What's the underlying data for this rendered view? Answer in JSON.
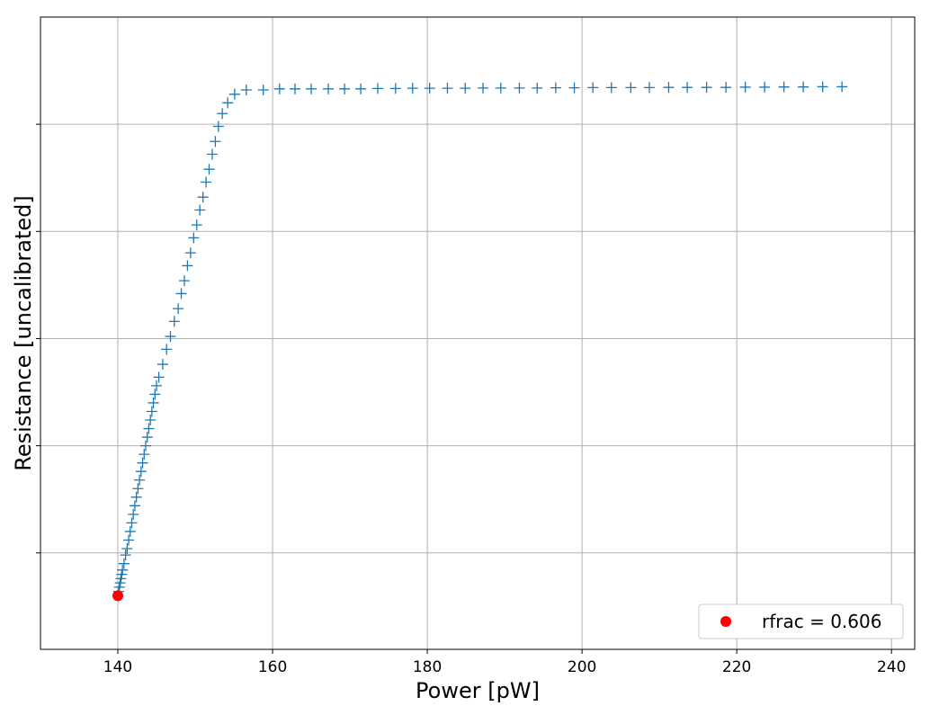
{
  "chart_data": {
    "type": "scatter",
    "xlabel": "Power [pW]",
    "ylabel": "Resistance [uncalibrated]",
    "xlim": [
      130,
      243
    ],
    "ylim": [
      -0.25,
      2.7
    ],
    "xticks": [
      140,
      160,
      180,
      200,
      220,
      240
    ],
    "yticks": [
      0.2,
      0.7,
      1.2,
      1.7,
      2.2
    ],
    "grid": true,
    "legend_position": "lower right",
    "colors": {
      "series": "#1f77b4",
      "highlight": "#ff0000",
      "grid": "#b0b0b0"
    },
    "series": [
      {
        "marker": "plus",
        "x": [
          140.0,
          140.1,
          140.2,
          140.3,
          140.4,
          140.5,
          140.6,
          140.8,
          141.0,
          141.2,
          141.4,
          141.6,
          141.8,
          142.0,
          142.2,
          142.4,
          142.6,
          142.8,
          143.0,
          143.2,
          143.4,
          143.6,
          143.8,
          144.0,
          144.2,
          144.4,
          144.6,
          144.8,
          145.0,
          145.3,
          145.8,
          146.3,
          146.8,
          147.3,
          147.8,
          148.2,
          148.6,
          149.0,
          149.4,
          149.8,
          150.2,
          150.6,
          151.0,
          151.4,
          151.8,
          152.2,
          152.6,
          153.0,
          153.5,
          154.2,
          155.1,
          156.6,
          158.8,
          160.9,
          162.9,
          165.0,
          167.2,
          169.3,
          171.4,
          173.6,
          175.9,
          178.1,
          180.3,
          182.6,
          184.9,
          187.2,
          189.5,
          191.9,
          194.2,
          196.6,
          199.0,
          201.4,
          203.8,
          206.3,
          208.7,
          211.2,
          213.6,
          216.1,
          218.6,
          221.1,
          223.6,
          226.1,
          228.6,
          231.1,
          233.6
        ],
        "y": [
          0.0,
          0.02,
          0.04,
          0.06,
          0.08,
          0.1,
          0.12,
          0.15,
          0.19,
          0.22,
          0.26,
          0.3,
          0.34,
          0.38,
          0.42,
          0.46,
          0.5,
          0.54,
          0.58,
          0.62,
          0.66,
          0.7,
          0.74,
          0.78,
          0.82,
          0.86,
          0.9,
          0.94,
          0.98,
          1.02,
          1.08,
          1.15,
          1.21,
          1.28,
          1.34,
          1.41,
          1.47,
          1.54,
          1.6,
          1.67,
          1.73,
          1.8,
          1.86,
          1.93,
          1.99,
          2.06,
          2.12,
          2.19,
          2.25,
          2.3,
          2.34,
          2.36,
          2.36,
          2.365,
          2.365,
          2.365,
          2.365,
          2.365,
          2.365,
          2.367,
          2.367,
          2.368,
          2.368,
          2.368,
          2.368,
          2.369,
          2.369,
          2.369,
          2.369,
          2.37,
          2.37,
          2.371,
          2.371,
          2.371,
          2.371,
          2.372,
          2.372,
          2.372,
          2.372,
          2.373,
          2.373,
          2.374,
          2.374,
          2.375,
          2.375
        ]
      },
      {
        "name": "rfrac = 0.606",
        "marker": "circle",
        "x": [
          140.0
        ],
        "y": [
          0.0
        ]
      }
    ]
  }
}
